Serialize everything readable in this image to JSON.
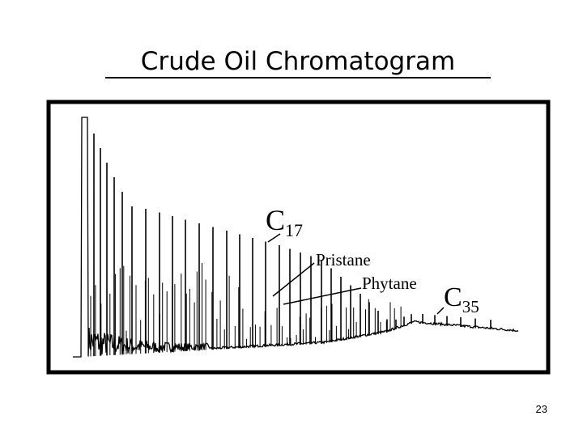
{
  "title": "Crude Oil Chromatogram",
  "labels": {
    "c17": {
      "letter": "C",
      "sub": "17"
    },
    "pristane": "Pristane",
    "phytane": "Phytane",
    "c35": {
      "letter": "C",
      "sub": "35"
    }
  },
  "page_number": "23"
}
